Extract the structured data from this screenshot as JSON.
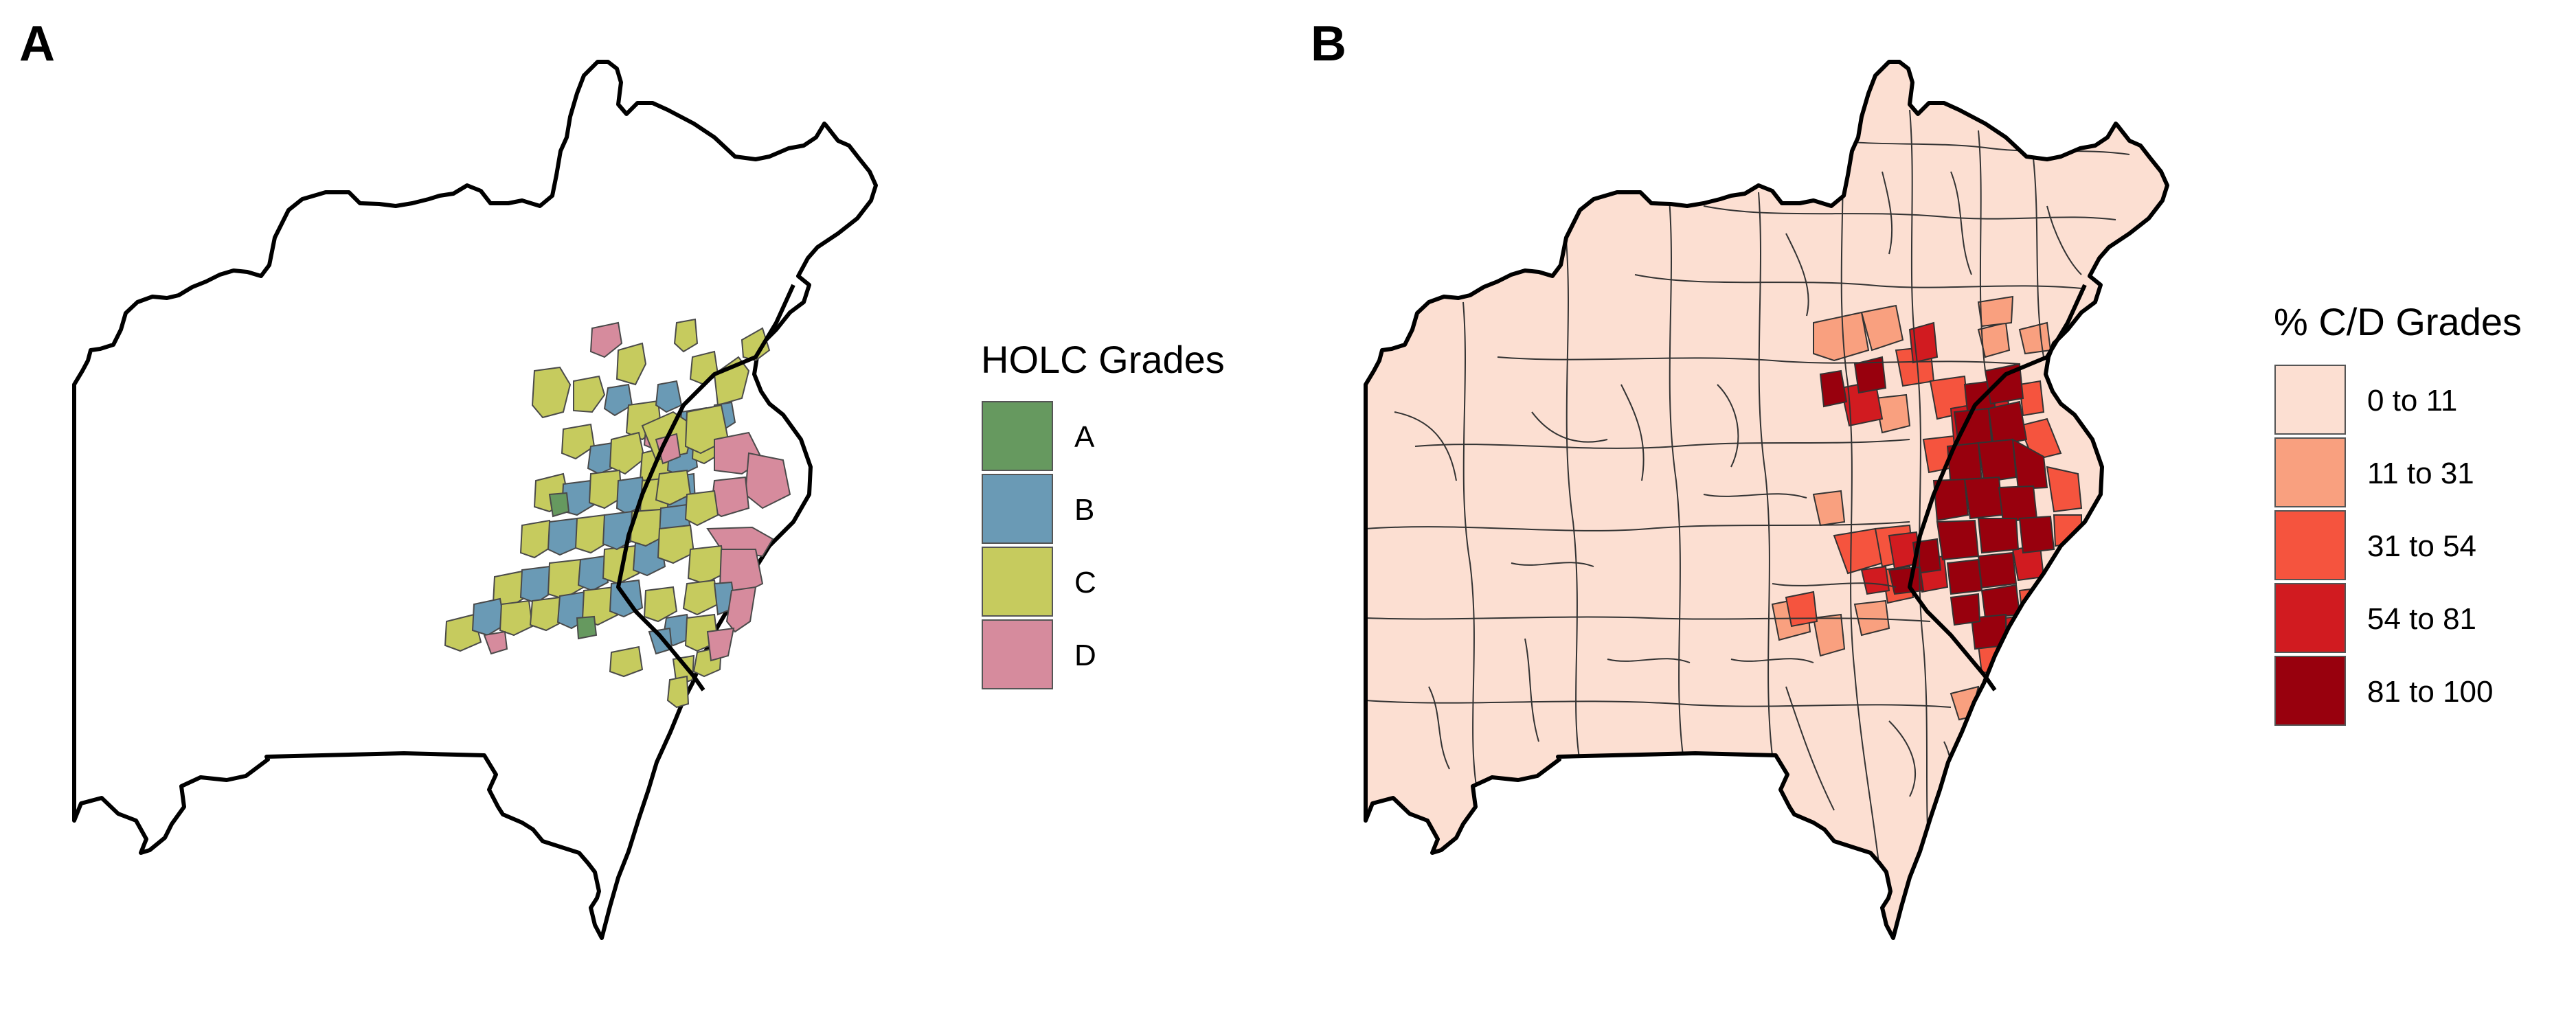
{
  "panels": [
    {
      "label": "A",
      "legend": {
        "title": "HOLC Grades",
        "items": [
          {
            "label": "A",
            "color": "#66995f"
          },
          {
            "label": "B",
            "color": "#6a9ab5"
          },
          {
            "label": "C",
            "color": "#c6cb5e"
          },
          {
            "label": "D",
            "color": "#d68b9d"
          }
        ]
      }
    },
    {
      "label": "B",
      "legend": {
        "title": "% C/D Grades",
        "items": [
          {
            "label": "0 to 11",
            "color": "#fcdfd2"
          },
          {
            "label": "11 to 31",
            "color": "#f9a07f"
          },
          {
            "label": "31 to 54",
            "color": "#f5543e"
          },
          {
            "label": "54 to 81",
            "color": "#d11b20"
          },
          {
            "label": "81 to 100",
            "color": "#98000d"
          }
        ]
      }
    }
  ],
  "colors": {
    "outline": "#000000",
    "tract_border": "#333333",
    "holc_border": "#4a4a4a",
    "background": "#ffffff"
  }
}
